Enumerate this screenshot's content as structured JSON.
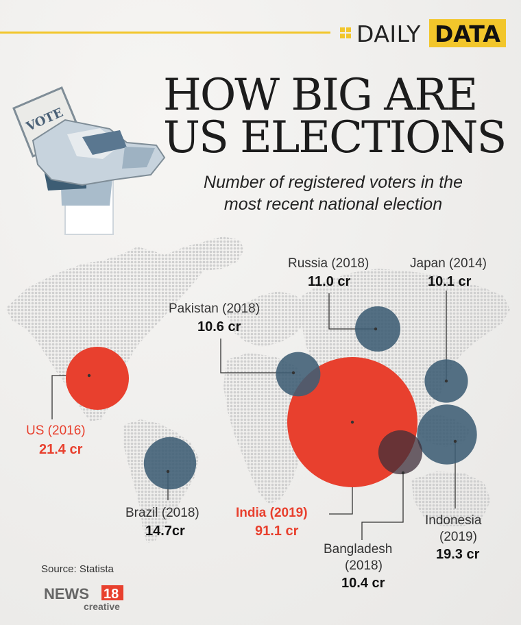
{
  "header": {
    "brand_daily": "DAILY",
    "brand_data": "DATA",
    "brand_color": "#f2c62b"
  },
  "title_lines": [
    "HOW BIG ARE",
    "US ELECTIONS"
  ],
  "subtitle_lines": [
    "Number of registered voters in the",
    "most recent national election"
  ],
  "icon": "fist-holding-vote-ballot-icon",
  "ballot_text": "VOTE",
  "colors": {
    "highlight": "#e8402e",
    "other": "#3d5d74",
    "map": "#cfcfcf"
  },
  "chart_data": {
    "type": "bubble-map",
    "title": "HOW BIG ARE US ELECTIONS",
    "subtitle": "Number of registered voters in the most recent national election",
    "unit": "cr",
    "points": [
      {
        "country": "US",
        "year": "2016",
        "label": "US (2016)",
        "value": 21.4,
        "value_label": "21.4 cr",
        "highlight": true
      },
      {
        "country": "Brazil",
        "year": "2018",
        "label": "Brazil (2018)",
        "value": 14.7,
        "value_label": "14.7cr",
        "highlight": false
      },
      {
        "country": "Pakistan",
        "year": "2018",
        "label": "Pakistan (2018)",
        "value": 10.6,
        "value_label": "10.6 cr",
        "highlight": false
      },
      {
        "country": "Russia",
        "year": "2018",
        "label": "Russia (2018)",
        "value": 11.0,
        "value_label": "11.0 cr",
        "highlight": false
      },
      {
        "country": "Japan",
        "year": "2014",
        "label": "Japan (2014)",
        "value": 10.1,
        "value_label": "10.1 cr",
        "highlight": false
      },
      {
        "country": "India",
        "year": "2019",
        "label": "India (2019)",
        "value": 91.1,
        "value_label": "91.1 cr",
        "highlight": true
      },
      {
        "country": "Indonesia",
        "year": "2019",
        "label_lines": [
          "Indonesia",
          "(2019)"
        ],
        "value": 19.3,
        "value_label": "19.3 cr",
        "highlight": false
      },
      {
        "country": "Bangladesh",
        "year": "2018",
        "label_lines": [
          "Bangladesh",
          "(2018)"
        ],
        "value": 10.4,
        "value_label": "10.4 cr",
        "highlight": false
      }
    ]
  },
  "source": "Source: Statista",
  "logo": {
    "word": "NEWS",
    "number": "18",
    "tag": "creative"
  }
}
